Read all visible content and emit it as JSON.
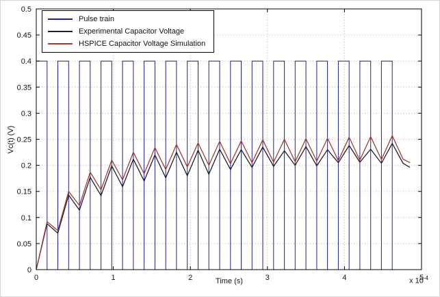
{
  "chart_data": {
    "type": "line",
    "title": "",
    "xlabel": "Time (s)",
    "ylabel": "Vc(t) (V)",
    "x_multiplier": {
      "base": "x 10",
      "exp": "-4"
    },
    "xlim": [
      0,
      5
    ],
    "ylim": [
      0,
      0.5
    ],
    "grid": true,
    "legend_position": "top-left",
    "xticks": {
      "values": [
        0,
        1,
        2,
        3,
        4,
        5
      ],
      "labels": [
        "0",
        "1",
        "2",
        "3",
        "4",
        "5"
      ]
    },
    "yticks": {
      "values": [
        0,
        0.05,
        0.1,
        0.15,
        0.2,
        0.25,
        0.3,
        0.35,
        0.4,
        0.45,
        0.5
      ],
      "labels": [
        "0",
        "0.05",
        "0.1",
        "0.15",
        "0.2",
        "0.25",
        "0.3",
        "0.35",
        "0.4",
        "0.45",
        "0.5"
      ]
    },
    "colors": {
      "grid": "#b5b5b5",
      "axis": "#000000"
    },
    "series": [
      {
        "name": "Pulse train",
        "color": "#1f1f8f",
        "waveform": {
          "type": "square",
          "t_start": 0,
          "period": 0.28,
          "duty": 0.5,
          "high": 0.4,
          "low": 0,
          "cycles": 17
        }
      },
      {
        "name": "Experimental Capacitor Voltage",
        "color": "#1c1c30",
        "points": [
          [
            0,
            0
          ],
          [
            0.14,
            0.088
          ],
          [
            0.28,
            0.07
          ],
          [
            0.42,
            0.143
          ],
          [
            0.56,
            0.114
          ],
          [
            0.7,
            0.177
          ],
          [
            0.84,
            0.142
          ],
          [
            0.98,
            0.199
          ],
          [
            1.12,
            0.159
          ],
          [
            1.26,
            0.212
          ],
          [
            1.4,
            0.17
          ],
          [
            1.54,
            0.22
          ],
          [
            1.68,
            0.176
          ],
          [
            1.82,
            0.225
          ],
          [
            1.96,
            0.18
          ],
          [
            2.1,
            0.229
          ],
          [
            2.24,
            0.183
          ],
          [
            2.38,
            0.231
          ],
          [
            2.52,
            0.192
          ],
          [
            2.66,
            0.23
          ],
          [
            2.8,
            0.196
          ],
          [
            2.94,
            0.235
          ],
          [
            3.08,
            0.198
          ],
          [
            3.22,
            0.228
          ],
          [
            3.36,
            0.2
          ],
          [
            3.5,
            0.236
          ],
          [
            3.64,
            0.199
          ],
          [
            3.78,
            0.23
          ],
          [
            3.92,
            0.205
          ],
          [
            4.06,
            0.238
          ],
          [
            4.2,
            0.206
          ],
          [
            4.34,
            0.231
          ],
          [
            4.48,
            0.204
          ],
          [
            4.62,
            0.242
          ],
          [
            4.76,
            0.204
          ],
          [
            4.85,
            0.196
          ]
        ]
      },
      {
        "name": "HSPICE Capacitor Voltage Simulation",
        "color": "#a63a2f",
        "points": [
          [
            0,
            0
          ],
          [
            0.14,
            0.092
          ],
          [
            0.28,
            0.075
          ],
          [
            0.42,
            0.15
          ],
          [
            0.56,
            0.123
          ],
          [
            0.7,
            0.187
          ],
          [
            0.84,
            0.153
          ],
          [
            0.98,
            0.21
          ],
          [
            1.12,
            0.172
          ],
          [
            1.26,
            0.225
          ],
          [
            1.4,
            0.184
          ],
          [
            1.54,
            0.234
          ],
          [
            1.68,
            0.192
          ],
          [
            1.82,
            0.24
          ],
          [
            1.96,
            0.197
          ],
          [
            2.1,
            0.243
          ],
          [
            2.24,
            0.2
          ],
          [
            2.38,
            0.246
          ],
          [
            2.52,
            0.203
          ],
          [
            2.66,
            0.247
          ],
          [
            2.8,
            0.205
          ],
          [
            2.94,
            0.249
          ],
          [
            3.08,
            0.206
          ],
          [
            3.22,
            0.25
          ],
          [
            3.36,
            0.207
          ],
          [
            3.5,
            0.251
          ],
          [
            3.64,
            0.208
          ],
          [
            3.78,
            0.252
          ],
          [
            3.92,
            0.209
          ],
          [
            4.06,
            0.254
          ],
          [
            4.2,
            0.21
          ],
          [
            4.34,
            0.255
          ],
          [
            4.48,
            0.211
          ],
          [
            4.62,
            0.257
          ],
          [
            4.76,
            0.212
          ],
          [
            4.85,
            0.205
          ]
        ]
      }
    ]
  }
}
